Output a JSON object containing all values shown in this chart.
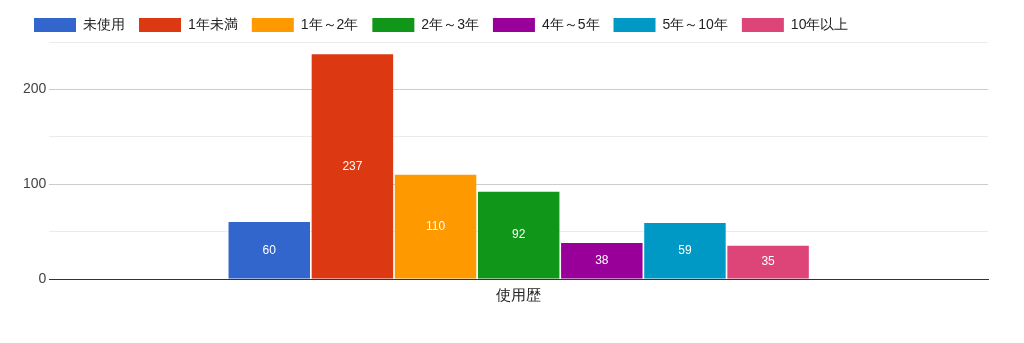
{
  "chart_data": {
    "type": "bar",
    "categories": [
      "使用歴"
    ],
    "series": [
      {
        "name": "未使用",
        "color": "#3366cc",
        "values": [
          60
        ]
      },
      {
        "name": "1年未満",
        "color": "#dc3912",
        "values": [
          237
        ]
      },
      {
        "name": "1年～2年",
        "color": "#ff9900",
        "values": [
          110
        ]
      },
      {
        "name": "2年～3年",
        "color": "#109618",
        "values": [
          92
        ]
      },
      {
        "name": "4年～5年",
        "color": "#990099",
        "values": [
          38
        ]
      },
      {
        "name": "5年～10年",
        "color": "#0099c6",
        "values": [
          59
        ]
      },
      {
        "name": "10年以上",
        "color": "#dd4477",
        "values": [
          35
        ]
      }
    ],
    "ylim": [
      0,
      250
    ],
    "yticks": [
      0,
      {
        "value": 50,
        "label": null
      },
      100,
      {
        "value": 150,
        "label": null
      },
      200,
      {
        "value": 250,
        "label": null
      }
    ],
    "grid": "y",
    "legend": "top",
    "data_labels": true
  }
}
